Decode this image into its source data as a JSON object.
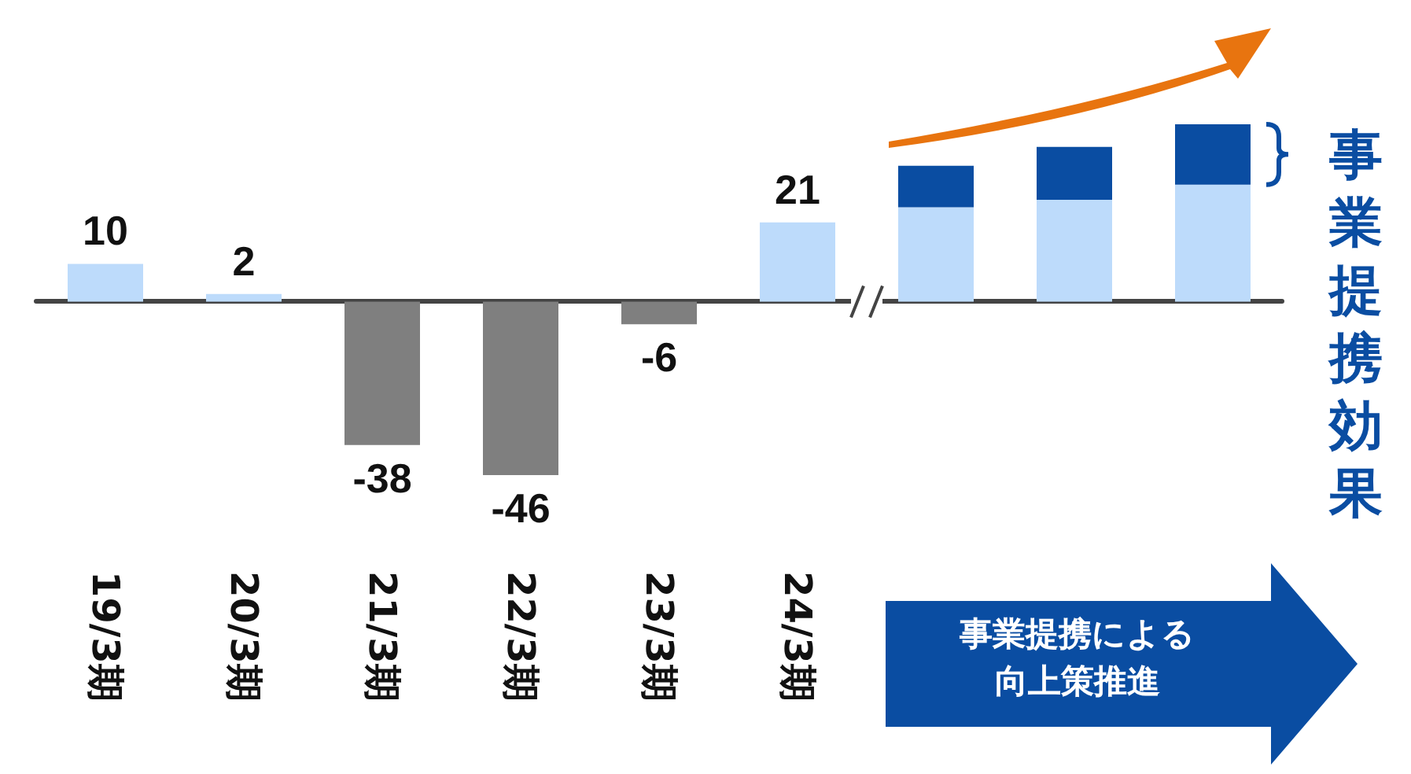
{
  "chart_data": {
    "type": "bar",
    "stacked": true,
    "categories": [
      "19/3期",
      "20/3期",
      "21/3期",
      "22/3期",
      "23/3期",
      "24/3期",
      null,
      null,
      null
    ],
    "series": [
      {
        "colors": [
          "#bddbfb",
          "#bddbfb",
          "#7f7f7f",
          "#7f7f7f",
          "#7f7f7f",
          "#bddbfb",
          "#bddbfb",
          "#bddbfb",
          "#bddbfb"
        ],
        "values": [
          10,
          2,
          -38,
          -46,
          -6,
          21,
          25,
          27,
          31
        ],
        "value_labels": [
          "10",
          "2",
          "-38",
          "-46",
          "-6",
          "21",
          null,
          null,
          null
        ]
      },
      {
        "color": "#0a4da2",
        "values": [
          null,
          null,
          null,
          null,
          null,
          null,
          11,
          14,
          16
        ]
      }
    ],
    "tick_labels": "x",
    "annotations": [
      "事業提携効果",
      "事業提携による向上策推進"
    ]
  }
}
